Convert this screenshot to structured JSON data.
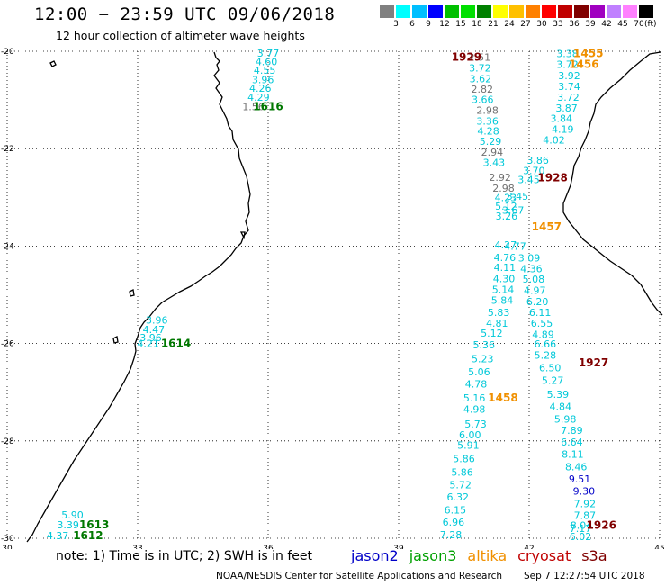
{
  "header": {
    "title": "12:00 − 23:59 UTC 09/06/2018",
    "subtitle": "12 hour collection of altimeter wave heights"
  },
  "scale": {
    "unit": "(ft)",
    "bins": [
      {
        "label": "3",
        "color": "#808080"
      },
      {
        "label": "6",
        "color": "#00ffff"
      },
      {
        "label": "9",
        "color": "#00bfff"
      },
      {
        "label": "12",
        "color": "#0000ff"
      },
      {
        "label": "15",
        "color": "#00c000"
      },
      {
        "label": "18",
        "color": "#00e000"
      },
      {
        "label": "21",
        "color": "#008000"
      },
      {
        "label": "24",
        "color": "#ffff00"
      },
      {
        "label": "27",
        "color": "#ffc000"
      },
      {
        "label": "30",
        "color": "#ff8000"
      },
      {
        "label": "33",
        "color": "#ff0000"
      },
      {
        "label": "36",
        "color": "#c00000"
      },
      {
        "label": "39",
        "color": "#800000"
      },
      {
        "label": "42",
        "color": "#a000c0"
      },
      {
        "label": "45",
        "color": "#c080ff"
      },
      {
        "label": "70",
        "color": "#ff80ff"
      },
      {
        "label": "",
        "color": "#000000"
      }
    ]
  },
  "axes": {
    "lon_ticks": [
      "30",
      "33",
      "36",
      "39",
      "42",
      "45"
    ],
    "lat_ticks": [
      "-20",
      "-22",
      "-24",
      "-26",
      "-28",
      "-30"
    ],
    "lon_range": [
      30,
      45
    ],
    "lat_range": [
      -30,
      -20
    ]
  },
  "colors": {
    "gray": "#707070",
    "cyan": "#00c8d8",
    "blue": "#0000c8",
    "green": "#007800",
    "orange": "#f09000",
    "darkred": "#800000"
  },
  "tracks": [
    {
      "time": "1616",
      "time_color": "green",
      "time_pos": [
        36.0,
        -21.14
      ],
      "values": [
        {
          "v": "3.77",
          "c": "cyan",
          "lon": 36.0,
          "lat": -20.04
        },
        {
          "v": "4.60",
          "c": "cyan",
          "lon": 35.96,
          "lat": -20.21
        },
        {
          "v": "4.55",
          "c": "cyan",
          "lon": 35.92,
          "lat": -20.39
        },
        {
          "v": "3.96",
          "c": "cyan",
          "lon": 35.88,
          "lat": -20.58
        },
        {
          "v": "4.26",
          "c": "cyan",
          "lon": 35.82,
          "lat": -20.76
        },
        {
          "v": "4.29",
          "c": "cyan",
          "lon": 35.78,
          "lat": -20.94
        },
        {
          "v": "1.56",
          "c": "gray",
          "lon": 35.66,
          "lat": -21.14
        }
      ]
    },
    {
      "time": "1614",
      "time_color": "green",
      "time_pos": [
        33.88,
        -26.0
      ],
      "values": [
        {
          "v": "3.96",
          "c": "cyan",
          "lon": 33.44,
          "lat": -25.52
        },
        {
          "v": "4.47",
          "c": "cyan",
          "lon": 33.37,
          "lat": -25.71
        },
        {
          "v": "3.96",
          "c": "cyan",
          "lon": 33.3,
          "lat": -25.88
        },
        {
          "v": "4.21",
          "c": "cyan",
          "lon": 33.24,
          "lat": -26.0
        }
      ]
    },
    {
      "time": "1613",
      "time_color": "green",
      "time_pos": [
        32.0,
        -29.72
      ],
      "values": [
        {
          "v": "5.90",
          "c": "cyan",
          "lon": 31.5,
          "lat": -29.52
        },
        {
          "v": "3.39",
          "c": "cyan",
          "lon": 31.4,
          "lat": -29.72
        }
      ]
    },
    {
      "time": "1612",
      "time_color": "green",
      "time_pos": [
        31.86,
        -29.94
      ],
      "values": [
        {
          "v": "4.37",
          "c": "cyan",
          "lon": 31.16,
          "lat": -29.94
        }
      ]
    },
    {
      "time": "1929",
      "time_color": "darkred",
      "time_pos": [
        40.56,
        -20.12
      ],
      "values": [
        {
          "v": "2.51",
          "c": "gray",
          "lon": 40.86,
          "lat": -20.12
        },
        {
          "v": "3.72",
          "c": "cyan",
          "lon": 40.87,
          "lat": -20.34
        },
        {
          "v": "3.62",
          "c": "cyan",
          "lon": 40.88,
          "lat": -20.56
        },
        {
          "v": "2.82",
          "c": "gray",
          "lon": 40.92,
          "lat": -20.78
        },
        {
          "v": "3.66",
          "c": "cyan",
          "lon": 40.93,
          "lat": -20.99
        },
        {
          "v": "2.98",
          "c": "gray",
          "lon": 41.04,
          "lat": -21.21
        },
        {
          "v": "3.36",
          "c": "cyan",
          "lon": 41.04,
          "lat": -21.43
        },
        {
          "v": "4.28",
          "c": "cyan",
          "lon": 41.06,
          "lat": -21.64
        },
        {
          "v": "5.29",
          "c": "cyan",
          "lon": 41.11,
          "lat": -21.85
        },
        {
          "v": "2.94",
          "c": "gray",
          "lon": 41.15,
          "lat": -22.07
        },
        {
          "v": "3.43",
          "c": "cyan",
          "lon": 41.19,
          "lat": -22.28
        },
        {
          "v": "2.92",
          "c": "gray",
          "lon": 41.33,
          "lat": -22.59
        },
        {
          "v": "2.98",
          "c": "gray",
          "lon": 41.41,
          "lat": -22.81
        },
        {
          "v": "4.23",
          "c": "cyan",
          "lon": 41.46,
          "lat": -23.0
        },
        {
          "v": "5.12",
          "c": "cyan",
          "lon": 41.47,
          "lat": -23.18
        },
        {
          "v": "3.26",
          "c": "cyan",
          "lon": 41.48,
          "lat": -23.38
        },
        {
          "v": "4.27",
          "c": "cyan",
          "lon": 41.46,
          "lat": -23.97
        }
      ]
    },
    {
      "time": "1928",
      "time_color": "darkred",
      "time_pos": [
        42.54,
        -22.6
      ],
      "values": [
        {
          "v": "3.86",
          "c": "cyan",
          "lon": 42.2,
          "lat": -22.24
        },
        {
          "v": "3.70",
          "c": "cyan",
          "lon": 42.11,
          "lat": -22.45
        },
        {
          "v": "3.45",
          "c": "cyan",
          "lon": 41.99,
          "lat": -22.63
        },
        {
          "v": "3.45",
          "c": "cyan",
          "lon": 41.73,
          "lat": -22.98
        },
        {
          "v": "3.67",
          "c": "cyan",
          "lon": 41.63,
          "lat": -23.26
        }
      ]
    },
    {
      "time": "1927",
      "time_color": "darkred",
      "time_pos": [
        43.48,
        -26.4
      ],
      "values": [
        {
          "v": "4.77",
          "c": "cyan",
          "lon": 41.68,
          "lat": -24.0
        },
        {
          "v": "4.76",
          "c": "cyan",
          "lon": 41.44,
          "lat": -24.23
        },
        {
          "v": "4.11",
          "c": "cyan",
          "lon": 41.44,
          "lat": -24.44
        },
        {
          "v": "4.30",
          "c": "cyan",
          "lon": 41.42,
          "lat": -24.67
        },
        {
          "v": "5.14",
          "c": "cyan",
          "lon": 41.4,
          "lat": -24.89
        },
        {
          "v": "5.84",
          "c": "cyan",
          "lon": 41.38,
          "lat": -25.11
        },
        {
          "v": "5.83",
          "c": "cyan",
          "lon": 41.3,
          "lat": -25.36
        },
        {
          "v": "4.81",
          "c": "cyan",
          "lon": 41.26,
          "lat": -25.58
        },
        {
          "v": "5.12",
          "c": "cyan",
          "lon": 41.14,
          "lat": -25.79
        },
        {
          "v": "5.36",
          "c": "cyan",
          "lon": 40.96,
          "lat": -26.03
        },
        {
          "v": "5.23",
          "c": "cyan",
          "lon": 40.93,
          "lat": -26.31
        },
        {
          "v": "5.06",
          "c": "cyan",
          "lon": 40.85,
          "lat": -26.58
        },
        {
          "v": "4.78",
          "c": "cyan",
          "lon": 40.78,
          "lat": -26.83
        },
        {
          "v": "5.16",
          "c": "cyan",
          "lon": 40.74,
          "lat": -27.12
        },
        {
          "v": "4.98",
          "c": "cyan",
          "lon": 40.74,
          "lat": -27.35
        },
        {
          "v": "5.73",
          "c": "cyan",
          "lon": 40.77,
          "lat": -27.65
        },
        {
          "v": "6.00",
          "c": "cyan",
          "lon": 40.64,
          "lat": -27.87
        }
      ]
    },
    {
      "time": "1457",
      "time_color": "orange",
      "time_pos": [
        42.4,
        -23.6
      ],
      "values": [
        {
          "v": "3.09",
          "c": "cyan",
          "lon": 42.0,
          "lat": -24.24
        },
        {
          "v": "4.36",
          "c": "cyan",
          "lon": 42.05,
          "lat": -24.46
        },
        {
          "v": "5.08",
          "c": "cyan",
          "lon": 42.1,
          "lat": -24.68
        },
        {
          "v": "4.97",
          "c": "cyan",
          "lon": 42.13,
          "lat": -24.91
        },
        {
          "v": "6.20",
          "c": "cyan",
          "lon": 42.19,
          "lat": -25.14
        },
        {
          "v": "6.11",
          "c": "cyan",
          "lon": 42.25,
          "lat": -25.36
        },
        {
          "v": "6.55",
          "c": "cyan",
          "lon": 42.29,
          "lat": -25.58
        },
        {
          "v": "4.89",
          "c": "cyan",
          "lon": 42.32,
          "lat": -25.81
        },
        {
          "v": "6.66",
          "c": "cyan",
          "lon": 42.37,
          "lat": -26.01
        },
        {
          "v": "5.28",
          "c": "cyan",
          "lon": 42.37,
          "lat": -26.24
        }
      ]
    },
    {
      "time": "1456",
      "time_color": "orange",
      "time_pos": [
        43.26,
        -20.27
      ],
      "values": [
        {
          "v": "3.72",
          "c": "cyan",
          "lon": 42.88,
          "lat": -20.27
        },
        {
          "v": "3.92",
          "c": "cyan",
          "lon": 42.92,
          "lat": -20.5
        },
        {
          "v": "3.74",
          "c": "cyan",
          "lon": 42.92,
          "lat": -20.72
        },
        {
          "v": "3.72",
          "c": "cyan",
          "lon": 42.9,
          "lat": -20.94
        },
        {
          "v": "3.87",
          "c": "cyan",
          "lon": 42.86,
          "lat": -21.16
        },
        {
          "v": "3.84",
          "c": "cyan",
          "lon": 42.74,
          "lat": -21.38
        },
        {
          "v": "4.19",
          "c": "cyan",
          "lon": 42.77,
          "lat": -21.6
        },
        {
          "v": "4.02",
          "c": "cyan",
          "lon": 42.57,
          "lat": -21.82
        }
      ]
    },
    {
      "time": "1455",
      "time_color": "orange",
      "time_pos": [
        43.36,
        -20.05
      ],
      "values": [
        {
          "v": "3.38",
          "c": "cyan",
          "lon": 42.88,
          "lat": -20.05
        }
      ]
    },
    {
      "time": "1458",
      "time_color": "orange",
      "time_pos": [
        41.4,
        -27.12
      ],
      "values": []
    },
    {
      "time": "1926",
      "time_color": "darkred",
      "time_pos": [
        43.66,
        -29.73
      ],
      "values": [
        {
          "v": "6.50",
          "c": "cyan",
          "lon": 42.48,
          "lat": -26.5
        },
        {
          "v": "5.27",
          "c": "cyan",
          "lon": 42.54,
          "lat": -26.76
        },
        {
          "v": "5.39",
          "c": "cyan",
          "lon": 42.66,
          "lat": -27.04
        },
        {
          "v": "4.84",
          "c": "cyan",
          "lon": 42.72,
          "lat": -27.29
        },
        {
          "v": "5.98",
          "c": "cyan",
          "lon": 42.83,
          "lat": -27.55
        },
        {
          "v": "7.89",
          "c": "cyan",
          "lon": 42.98,
          "lat": -27.78
        },
        {
          "v": "6.64",
          "c": "cyan",
          "lon": 42.98,
          "lat": -28.02
        },
        {
          "v": "8.11",
          "c": "cyan",
          "lon": 43.0,
          "lat": -28.27
        },
        {
          "v": "8.46",
          "c": "cyan",
          "lon": 43.08,
          "lat": -28.53
        },
        {
          "v": "9.51",
          "c": "blue",
          "lon": 43.16,
          "lat": -28.78
        },
        {
          "v": "9.30",
          "c": "blue",
          "lon": 43.26,
          "lat": -29.03
        },
        {
          "v": "7.92",
          "c": "cyan",
          "lon": 43.28,
          "lat": -29.29
        },
        {
          "v": "7.87",
          "c": "cyan",
          "lon": 43.28,
          "lat": -29.53
        },
        {
          "v": "8.04",
          "c": "cyan",
          "lon": 43.2,
          "lat": -29.73
        },
        {
          "v": "7.17",
          "c": "cyan",
          "lon": 43.18,
          "lat": -29.8
        },
        {
          "v": "6.02",
          "c": "cyan",
          "lon": 43.18,
          "lat": -29.96
        }
      ]
    },
    {
      "time": "",
      "time_color": "darkred",
      "time_pos": [
        40.0,
        -28.0
      ],
      "values": [
        {
          "v": "5.91",
          "c": "cyan",
          "lon": 40.6,
          "lat": -28.09
        },
        {
          "v": "5.86",
          "c": "cyan",
          "lon": 40.5,
          "lat": -28.36
        },
        {
          "v": "5.86",
          "c": "cyan",
          "lon": 40.46,
          "lat": -28.64
        },
        {
          "v": "5.72",
          "c": "cyan",
          "lon": 40.42,
          "lat": -28.9
        },
        {
          "v": "6.32",
          "c": "cyan",
          "lon": 40.36,
          "lat": -29.15
        },
        {
          "v": "6.15",
          "c": "cyan",
          "lon": 40.3,
          "lat": -29.42
        },
        {
          "v": "6.96",
          "c": "cyan",
          "lon": 40.26,
          "lat": -29.67
        },
        {
          "v": "7.28",
          "c": "cyan",
          "lon": 40.2,
          "lat": -29.93
        }
      ]
    }
  ],
  "note": "note: 1) Time is in UTC; 2) SWH is in feet",
  "satellites": [
    {
      "name": "jason2",
      "color": "#0000c8"
    },
    {
      "name": "jason3",
      "color": "#00a000"
    },
    {
      "name": "altika",
      "color": "#f09000"
    },
    {
      "name": "cryosat",
      "color": "#c00000"
    },
    {
      "name": "s3a",
      "color": "#800000"
    }
  ],
  "footer": {
    "center": "NOAA/NESDIS Center for Satellite Applications and Research",
    "timestamp": "Sep  7 12:27:54 UTC 2018"
  }
}
